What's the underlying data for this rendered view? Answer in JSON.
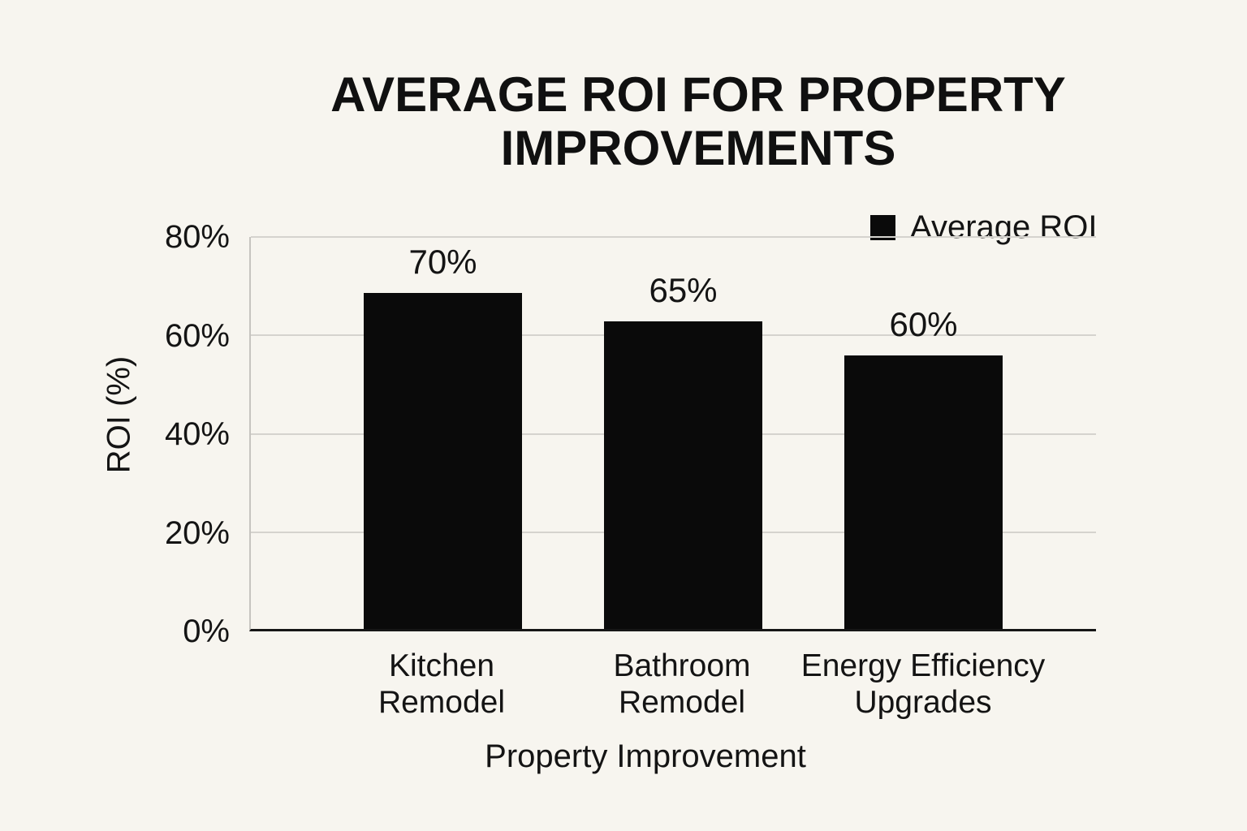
{
  "chart_data": {
    "type": "bar",
    "title": "AVERAGE ROI FOR PROPERTY IMPROVEMENTS",
    "categories": [
      "Kitchen Remodel",
      "Bathroom Remodel",
      "Energy Efficiency Upgrades"
    ],
    "category_lines": [
      [
        "Kitchen",
        "Remodel"
      ],
      [
        "Bathroom",
        "Remodel"
      ],
      [
        "Energy Efficiency",
        "Upgrades"
      ]
    ],
    "series": [
      {
        "name": "Average ROI",
        "values": [
          70,
          65,
          60
        ]
      }
    ],
    "data_labels": [
      "70%",
      "65%",
      "60%"
    ],
    "rendered_bar_percent": [
      68.5,
      62.7,
      55.8
    ],
    "xlabel": "Property Improvement",
    "ylabel": "ROI (%)",
    "ylim": [
      0,
      80
    ],
    "ytick_labels": [
      "80%",
      "60%",
      "40%",
      "20%",
      "0%"
    ],
    "ytick_values": [
      80,
      60,
      40,
      20,
      0
    ],
    "grid": "horizontal gridlines every 20%",
    "legend": {
      "position": "top-right",
      "label": "Average ROI",
      "swatch_color": "#0a0a0a"
    },
    "colors": {
      "background": "#f7f5ef",
      "bar": "#0a0a0a",
      "text": "#141414",
      "gridline": "#d5d3ce",
      "baseline": "#161616",
      "y_axis_line": "#c6c4bf"
    }
  }
}
